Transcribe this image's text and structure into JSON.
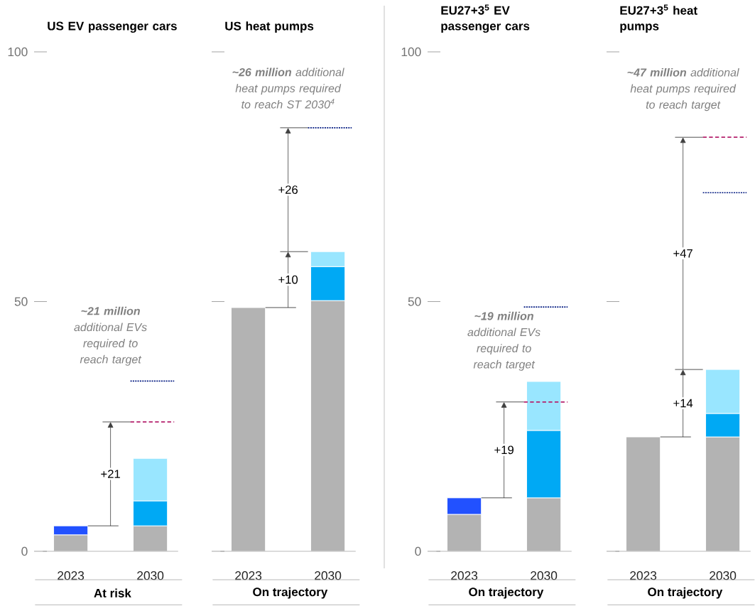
{
  "chart_data": [
    {
      "type": "bar",
      "title": "US EV passenger cars",
      "xlabel": "At risk",
      "categories": [
        "2023",
        "2030"
      ],
      "stacked": true,
      "series": [
        {
          "color": "#b3b3b3",
          "values": [
            3.3,
            5.1
          ]
        },
        {
          "colors": [
            "#2251ff",
            "#00a9f4"
          ],
          "values": [
            1.8,
            5.0
          ]
        },
        {
          "color": "#99e6ff",
          "values": [
            null,
            8.5
          ]
        }
      ],
      "ylim": [
        0,
        100
      ],
      "yticks": [
        0,
        50,
        100
      ],
      "ref_lines": [
        {
          "axis": "y",
          "value": 25.9,
          "color": "#b5226d",
          "line_style": "dashed"
        },
        {
          "axis": "y",
          "value": 34.1,
          "color": "#051c82",
          "line_style": "dotted"
        }
      ],
      "annotations": [
        "**~21 million** additional EVs required to reach target",
        "+21"
      ]
    },
    {
      "type": "bar",
      "title": "US heat pumps",
      "xlabel": "On trajectory",
      "categories": [
        "2023",
        "2030"
      ],
      "stacked": true,
      "series": [
        {
          "color": "#b3b3b3",
          "values": [
            48.8,
            50.2
          ]
        },
        {
          "color": "#00a9f4",
          "values": [
            null,
            6.8
          ]
        },
        {
          "color": "#99e6ff",
          "values": [
            null,
            3.0
          ]
        }
      ],
      "ylim": [
        0,
        100
      ],
      "yticks": [
        0,
        50,
        100
      ],
      "tick_labels": "x",
      "ref_lines": [
        {
          "axis": "y",
          "value": 84.8,
          "color": "#051c82",
          "line_style": "dotted"
        }
      ],
      "annotations": [
        "**~26 million** additional heat pumps required to reach ST 2030$^{4}$",
        "+10",
        "+26"
      ]
    },
    {
      "type": "bar",
      "title": "EU27+3$^{5}$ EV passenger cars",
      "xlabel": "On trajectory",
      "categories": [
        "2023",
        "2030"
      ],
      "stacked": true,
      "series": [
        {
          "color": "#b3b3b3",
          "values": [
            7.4,
            10.7
          ]
        },
        {
          "colors": [
            "#2251ff",
            "#00a9f4"
          ],
          "values": [
            3.3,
            13.5
          ]
        },
        {
          "color": "#99e6ff",
          "values": [
            null,
            9.8
          ]
        }
      ],
      "ylim": [
        0,
        100
      ],
      "yticks": [
        0,
        50,
        100
      ],
      "ref_lines": [
        {
          "axis": "y",
          "value": 29.9,
          "color": "#b5226d",
          "line_style": "dashed"
        },
        {
          "axis": "y",
          "value": 48.9,
          "color": "#051c82",
          "line_style": "dotted"
        }
      ],
      "annotations": [
        "**~19 million** additional EVs required to reach target",
        "+19"
      ]
    },
    {
      "type": "bar",
      "title": "EU27+3$^{5}$ heat pumps",
      "xlabel": "On trajectory",
      "categories": [
        "2023",
        "2030"
      ],
      "stacked": true,
      "series": [
        {
          "color": "#b3b3b3",
          "values": [
            22.9,
            22.9
          ]
        },
        {
          "color": "#00a9f4",
          "values": [
            null,
            4.7
          ]
        },
        {
          "color": "#99e6ff",
          "values": [
            null,
            8.8
          ]
        }
      ],
      "ylim": [
        0,
        100
      ],
      "yticks": [
        0,
        50,
        100
      ],
      "tick_labels": "x",
      "ref_lines": [
        {
          "axis": "y",
          "value": 82.9,
          "color": "#b5226d",
          "line_style": "dashed"
        },
        {
          "axis": "y",
          "value": 71.8,
          "color": "#051c82",
          "line_style": "dotted"
        }
      ],
      "annotations": [
        "**~47 million** additional heat pumps required to reach target",
        "+14",
        "+47"
      ]
    }
  ]
}
